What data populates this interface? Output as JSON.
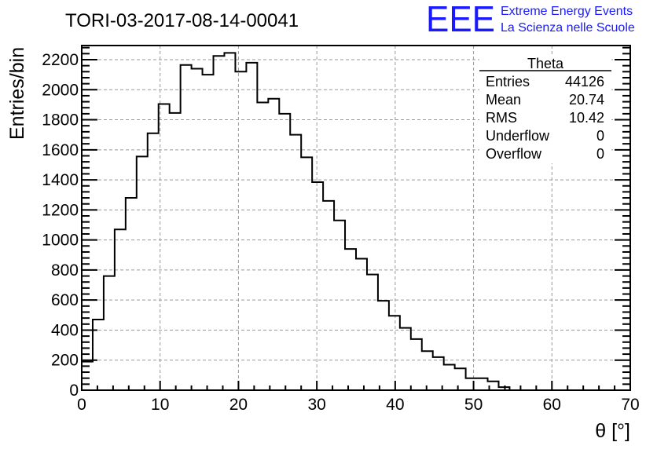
{
  "chart_data": {
    "type": "bar",
    "histogram": true,
    "title": "TORI-03-2017-08-14-00041",
    "xlabel": "θ [°]",
    "ylabel": "Entries/bin",
    "xlim": [
      0,
      70
    ],
    "ylim": [
      0,
      2300
    ],
    "grid": true,
    "bin_width": 1.4,
    "x_ticks": [
      "0",
      "10",
      "20",
      "30",
      "40",
      "50",
      "60",
      "70"
    ],
    "y_ticks": [
      "0",
      "200",
      "400",
      "600",
      "800",
      "1000",
      "1200",
      "1400",
      "1600",
      "1800",
      "2000",
      "2200"
    ],
    "values": [
      190,
      470,
      760,
      1070,
      1280,
      1555,
      1710,
      1905,
      1845,
      2165,
      2140,
      2100,
      2225,
      2245,
      2120,
      2180,
      1915,
      1940,
      1840,
      1700,
      1550,
      1385,
      1260,
      1130,
      940,
      875,
      770,
      595,
      495,
      415,
      340,
      260,
      220,
      170,
      145,
      80,
      80,
      59,
      20,
      0
    ],
    "color": "#000000"
  },
  "stats": {
    "name": "Theta",
    "rows": [
      {
        "label": "Entries",
        "value": "44126"
      },
      {
        "label": "Mean",
        "value": "20.74"
      },
      {
        "label": "RMS",
        "value": "10.42"
      },
      {
        "label": "Underflow",
        "value": "0"
      },
      {
        "label": "Overflow",
        "value": "0"
      }
    ]
  },
  "logo": {
    "mark": "EEE",
    "line1": "Extreme Energy Events",
    "line2": "La Scienza nelle Scuole",
    "color": "#1a1aff"
  }
}
